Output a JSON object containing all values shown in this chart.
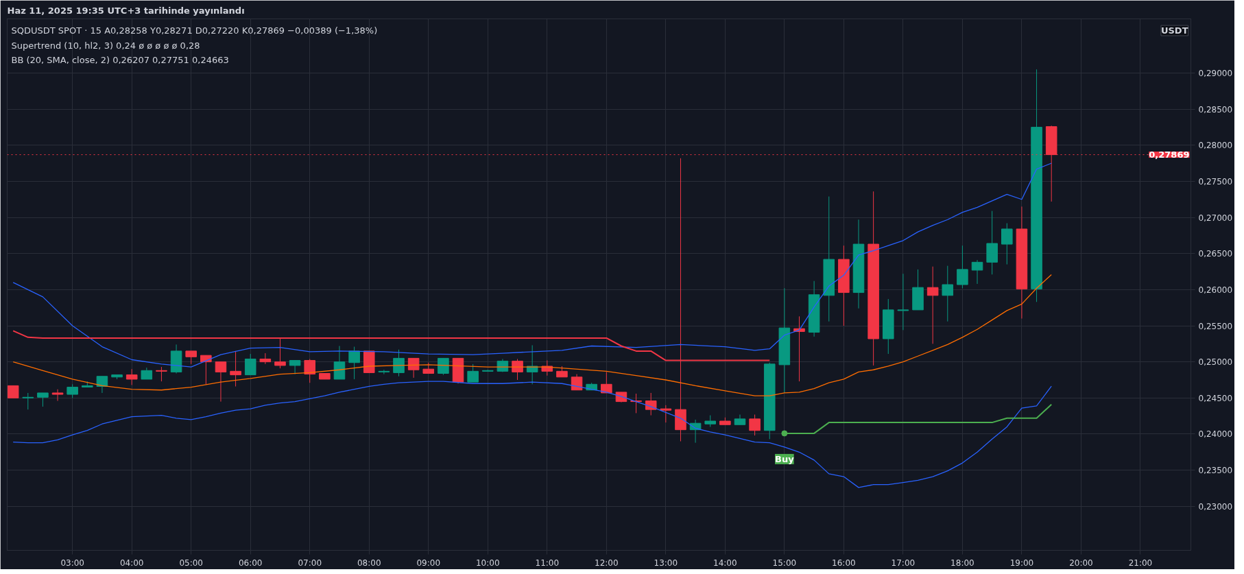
{
  "chart_data": {
    "type": "candlestick",
    "title": "Haz 11, 2025 19:35 UTC+3 tarihinde yayınlandı",
    "annotations": [
      "SQDUSDT SPOT · 15   A0,28258  Y0,28271  D0,27220  K0,27869  −0,00389 (−1,38%)",
      "Supertrend (10, hl2, 3)   0,24  ø  ø  ø  ø  ø  0,28",
      "BB (20, SMA, close, 2)   0,26207  0,27751  0,24663",
      "USDT",
      {
        "text": "Buy",
        "x": 15.0,
        "y": 0.2401
      }
    ],
    "x": [
      2.0,
      2.25,
      2.5,
      2.75,
      3.0,
      3.25,
      3.5,
      3.75,
      4.0,
      4.25,
      4.5,
      4.75,
      5.0,
      5.25,
      5.5,
      5.75,
      6.0,
      6.25,
      6.5,
      6.75,
      7.0,
      7.25,
      7.5,
      7.75,
      8.0,
      8.25,
      8.5,
      8.75,
      9.0,
      9.25,
      9.5,
      9.75,
      10.0,
      10.25,
      10.5,
      10.75,
      11.0,
      11.25,
      11.5,
      11.75,
      12.0,
      12.25,
      12.5,
      12.75,
      13.0,
      13.25,
      13.5,
      13.75,
      14.0,
      14.25,
      14.5,
      14.75,
      15.0,
      15.25,
      15.5,
      15.75,
      16.0,
      16.25,
      16.5,
      16.75,
      17.0,
      17.25,
      17.5,
      17.75,
      18.0,
      18.25,
      18.5,
      18.75,
      19.0,
      19.25,
      19.5
    ],
    "ohlc": [
      [
        0.2467,
        0.2467,
        0.245,
        0.245
      ],
      [
        0.245,
        0.2457,
        0.2434,
        0.2451
      ],
      [
        0.2451,
        0.2457,
        0.2438,
        0.2457
      ],
      [
        0.2457,
        0.2462,
        0.2446,
        0.2455
      ],
      [
        0.2455,
        0.2469,
        0.245,
        0.2465
      ],
      [
        0.2465,
        0.2473,
        0.2465,
        0.2467
      ],
      [
        0.2466,
        0.248,
        0.2457,
        0.248
      ],
      [
        0.2479,
        0.2482,
        0.2476,
        0.2482
      ],
      [
        0.2482,
        0.249,
        0.2468,
        0.2476
      ],
      [
        0.2476,
        0.2492,
        0.2476,
        0.2488
      ],
      [
        0.2488,
        0.2493,
        0.2473,
        0.2487
      ],
      [
        0.2486,
        0.2524,
        0.2484,
        0.2515
      ],
      [
        0.2515,
        0.2515,
        0.2497,
        0.2507
      ],
      [
        0.2509,
        0.2509,
        0.2469,
        0.25
      ],
      [
        0.25,
        0.25,
        0.2445,
        0.2486
      ],
      [
        0.2487,
        0.2515,
        0.2466,
        0.2482
      ],
      [
        0.2482,
        0.2511,
        0.2482,
        0.2504
      ],
      [
        0.2504,
        0.2512,
        0.2497,
        0.25
      ],
      [
        0.25,
        0.2533,
        0.2491,
        0.2495
      ],
      [
        0.2495,
        0.2502,
        0.2483,
        0.2502
      ],
      [
        0.2502,
        0.2504,
        0.2471,
        0.2483
      ],
      [
        0.2484,
        0.2484,
        0.2476,
        0.2476
      ],
      [
        0.2476,
        0.2522,
        0.2476,
        0.25
      ],
      [
        0.2499,
        0.2521,
        0.2476,
        0.2515
      ],
      [
        0.2515,
        0.2515,
        0.2485,
        0.2485
      ],
      [
        0.2486,
        0.2489,
        0.2483,
        0.2487
      ],
      [
        0.2485,
        0.2517,
        0.248,
        0.2505
      ],
      [
        0.2505,
        0.2505,
        0.2478,
        0.2489
      ],
      [
        0.249,
        0.2499,
        0.2484,
        0.2484
      ],
      [
        0.2484,
        0.2505,
        0.2482,
        0.2505
      ],
      [
        0.2505,
        0.2505,
        0.247,
        0.2472
      ],
      [
        0.2472,
        0.2497,
        0.2472,
        0.2487
      ],
      [
        0.2487,
        0.2489,
        0.2487,
        0.2488
      ],
      [
        0.2487,
        0.2504,
        0.2486,
        0.2501
      ],
      [
        0.2501,
        0.2504,
        0.2475,
        0.2486
      ],
      [
        0.2486,
        0.2523,
        0.2469,
        0.2494
      ],
      [
        0.2494,
        0.2502,
        0.2481,
        0.2487
      ],
      [
        0.2487,
        0.2494,
        0.2479,
        0.2479
      ],
      [
        0.2479,
        0.2483,
        0.2461,
        0.2461
      ],
      [
        0.2461,
        0.2471,
        0.2461,
        0.2469
      ],
      [
        0.2469,
        0.2486,
        0.2457,
        0.2457
      ],
      [
        0.2458,
        0.2458,
        0.2444,
        0.2445
      ],
      [
        0.2446,
        0.2456,
        0.2429,
        0.2445
      ],
      [
        0.2446,
        0.2457,
        0.2426,
        0.2434
      ],
      [
        0.2435,
        0.244,
        0.2416,
        0.2433
      ],
      [
        0.2434,
        0.2782,
        0.239,
        0.2406
      ],
      [
        0.2406,
        0.242,
        0.2388,
        0.2415
      ],
      [
        0.2414,
        0.2426,
        0.241,
        0.2418
      ],
      [
        0.2418,
        0.2423,
        0.2413,
        0.2413
      ],
      [
        0.2413,
        0.2427,
        0.2413,
        0.2421
      ],
      [
        0.2421,
        0.2427,
        0.2398,
        0.2405
      ],
      [
        0.2405,
        0.2499,
        0.2393,
        0.2497
      ],
      [
        0.2496,
        0.2602,
        0.2457,
        0.2547
      ],
      [
        0.2546,
        0.2563,
        0.2473,
        0.2542
      ],
      [
        0.2541,
        0.2612,
        0.2535,
        0.2593
      ],
      [
        0.2592,
        0.2729,
        0.2556,
        0.2642
      ],
      [
        0.2642,
        0.2661,
        0.255,
        0.2596
      ],
      [
        0.2596,
        0.2697,
        0.2574,
        0.2663
      ],
      [
        0.2663,
        0.2736,
        0.2495,
        0.2532
      ],
      [
        0.2532,
        0.2587,
        0.2511,
        0.2572
      ],
      [
        0.2571,
        0.2622,
        0.2544,
        0.2572
      ],
      [
        0.2572,
        0.2628,
        0.2572,
        0.2603
      ],
      [
        0.2603,
        0.2632,
        0.2525,
        0.2592
      ],
      [
        0.2592,
        0.2633,
        0.2556,
        0.2607
      ],
      [
        0.2607,
        0.2661,
        0.2602,
        0.2628
      ],
      [
        0.2627,
        0.2641,
        0.2608,
        0.2638
      ],
      [
        0.2638,
        0.2709,
        0.2621,
        0.2664
      ],
      [
        0.2663,
        0.2692,
        0.2635,
        0.2684
      ],
      [
        0.2684,
        0.2715,
        0.256,
        0.2601
      ],
      [
        0.2601,
        0.2905,
        0.2583,
        0.2825
      ],
      [
        0.28258,
        0.28271,
        0.2722,
        0.27869
      ]
    ],
    "series": [
      {
        "type": "line",
        "color": "#2962ff",
        "x": [
          2.0,
          2.5,
          3.0,
          3.5,
          4.0,
          4.5,
          5.0,
          5.5,
          6.0,
          6.5,
          7.0,
          7.5,
          8.25,
          9.0,
          9.75,
          10.25,
          11.25,
          11.75,
          12.5,
          13.25,
          14.0,
          14.5,
          14.75,
          15.0,
          15.25,
          15.5,
          15.75,
          16.0,
          16.25,
          16.5,
          16.75,
          17.0,
          17.25,
          17.5,
          17.75,
          18.0,
          18.25,
          18.5,
          18.75,
          19.0,
          19.25,
          19.5
        ],
        "values": [
          0.261,
          0.259,
          0.255,
          0.2521,
          0.2503,
          0.2497,
          0.2493,
          0.251,
          0.2519,
          0.252,
          0.2514,
          0.2515,
          0.2514,
          0.2511,
          0.251,
          0.2512,
          0.2516,
          0.2522,
          0.252,
          0.2524,
          0.2521,
          0.2516,
          0.2518,
          0.2537,
          0.2544,
          0.2576,
          0.2605,
          0.262,
          0.2648,
          0.2654,
          0.2661,
          0.2668,
          0.268,
          0.2689,
          0.2697,
          0.2707,
          0.2714,
          0.2723,
          0.2732,
          0.2725,
          0.2767,
          0.27751
        ]
      },
      {
        "type": "line",
        "color": "#ff6d00",
        "x": [
          2.0,
          2.5,
          3.0,
          3.5,
          4.0,
          4.5,
          5.0,
          5.5,
          6.0,
          6.5,
          7.0,
          7.5,
          8.0,
          8.5,
          9.0,
          10.0,
          11.0,
          12.0,
          12.5,
          13.0,
          13.5,
          14.0,
          14.5,
          14.75,
          15.0,
          15.25,
          15.5,
          15.75,
          16.0,
          16.25,
          16.5,
          16.75,
          17.0,
          17.25,
          17.5,
          17.75,
          18.0,
          18.25,
          18.5,
          18.75,
          19.0,
          19.25,
          19.5
        ],
        "values": [
          0.25,
          0.2488,
          0.2476,
          0.2467,
          0.2462,
          0.2461,
          0.2465,
          0.2472,
          0.2477,
          0.2483,
          0.2485,
          0.2489,
          0.2494,
          0.2495,
          0.2496,
          0.2493,
          0.2493,
          0.2487,
          0.2481,
          0.2475,
          0.2467,
          0.246,
          0.2453,
          0.2453,
          0.2457,
          0.2458,
          0.2463,
          0.2471,
          0.2476,
          0.2486,
          0.2489,
          0.2494,
          0.25,
          0.2508,
          0.2516,
          0.2524,
          0.2534,
          0.2545,
          0.2558,
          0.2571,
          0.258,
          0.2602,
          0.26207
        ]
      },
      {
        "type": "line",
        "color": "#2962ff",
        "x": [
          2.0,
          2.25,
          2.5,
          2.75,
          3.0,
          3.25,
          3.5,
          3.75,
          4.0,
          4.25,
          4.5,
          4.75,
          5.0,
          5.25,
          5.5,
          5.75,
          6.0,
          6.25,
          6.5,
          6.75,
          7.0,
          7.25,
          7.5,
          7.75,
          8.0,
          8.25,
          8.5,
          8.75,
          9.0,
          9.25,
          9.75,
          10.25,
          10.75,
          11.25,
          11.5,
          11.75,
          12.0,
          12.25,
          12.5,
          12.75,
          13.0,
          13.25,
          13.5,
          13.75,
          14.0,
          14.25,
          14.5,
          14.75,
          15.0,
          15.25,
          15.5,
          15.75,
          16.0,
          16.25,
          16.5,
          16.75,
          17.0,
          17.25,
          17.5,
          17.75,
          18.0,
          18.25,
          18.5,
          18.75,
          19.0,
          19.25,
          19.5
        ],
        "values": [
          0.2389,
          0.2388,
          0.2388,
          0.2392,
          0.2399,
          0.2405,
          0.2414,
          0.2419,
          0.2424,
          0.2425,
          0.2426,
          0.2422,
          0.242,
          0.2424,
          0.2429,
          0.2433,
          0.2435,
          0.244,
          0.2443,
          0.2445,
          0.2449,
          0.2453,
          0.2458,
          0.2462,
          0.2466,
          0.2469,
          0.2471,
          0.2472,
          0.2473,
          0.2473,
          0.247,
          0.247,
          0.2472,
          0.247,
          0.2466,
          0.2462,
          0.2458,
          0.2452,
          0.2445,
          0.2438,
          0.243,
          0.2422,
          0.2408,
          0.2403,
          0.2399,
          0.2394,
          0.2389,
          0.2388,
          0.2382,
          0.2375,
          0.2364,
          0.2345,
          0.2341,
          0.2326,
          0.233,
          0.233,
          0.2333,
          0.2336,
          0.2341,
          0.2349,
          0.236,
          0.2375,
          0.2393,
          0.241,
          0.2436,
          0.2439,
          0.24663
        ]
      },
      {
        "type": "line",
        "color": "#f23645",
        "x": [
          2.0,
          2.25,
          2.5,
          12.0,
          12.25,
          12.5,
          12.75,
          13.0,
          14.75
        ],
        "values": [
          0.2543,
          0.2534,
          0.2533,
          0.2533,
          0.2522,
          0.2515,
          0.2515,
          0.2502,
          0.2502
        ]
      },
      {
        "type": "line",
        "color": "#4caf50",
        "x": [
          15.0,
          15.5,
          15.75,
          18.5,
          18.75,
          19.25,
          19.5
        ],
        "values": [
          0.2401,
          0.2401,
          0.2416,
          0.2416,
          0.2422,
          0.2422,
          0.2441
        ]
      }
    ],
    "ref_lines": [
      {
        "axis": "y",
        "value": 0.27869,
        "label": "0,27869",
        "color": "#f23645",
        "line_style": "dotted"
      }
    ],
    "xlim": [
      1.9,
      21.85
    ],
    "xticks": [
      {
        "value": 3,
        "label": "03:00"
      },
      {
        "value": 4,
        "label": "04:00"
      },
      {
        "value": 5,
        "label": "05:00"
      },
      {
        "value": 6,
        "label": "06:00"
      },
      {
        "value": 7,
        "label": "07:00"
      },
      {
        "value": 8,
        "label": "08:00"
      },
      {
        "value": 9,
        "label": "09:00"
      },
      {
        "value": 10,
        "label": "10:00"
      },
      {
        "value": 11,
        "label": "11:00"
      },
      {
        "value": 12,
        "label": "12:00"
      },
      {
        "value": 13,
        "label": "13:00"
      },
      {
        "value": 14,
        "label": "14:00"
      },
      {
        "value": 15,
        "label": "15:00"
      },
      {
        "value": 16,
        "label": "16:00"
      },
      {
        "value": 17,
        "label": "17:00"
      },
      {
        "value": 18,
        "label": "18:00"
      },
      {
        "value": 19,
        "label": "19:00"
      },
      {
        "value": 20,
        "label": "20:00"
      },
      {
        "value": 21,
        "label": "21:00"
      }
    ],
    "ylim": [
      0.2239,
      0.2975
    ],
    "yticks": [
      {
        "value": 0.23,
        "label": "0,23000"
      },
      {
        "value": 0.235,
        "label": "0,23500"
      },
      {
        "value": 0.24,
        "label": "0,24000"
      },
      {
        "value": 0.245,
        "label": "0,24500"
      },
      {
        "value": 0.25,
        "label": "0,25000"
      },
      {
        "value": 0.255,
        "label": "0,25500"
      },
      {
        "value": 0.26,
        "label": "0,26000"
      },
      {
        "value": 0.265,
        "label": "0,26500"
      },
      {
        "value": 0.27,
        "label": "0,27000"
      },
      {
        "value": 0.275,
        "label": "0,27500"
      },
      {
        "value": 0.28,
        "label": "0,28000"
      },
      {
        "value": 0.285,
        "label": "0,28500"
      },
      {
        "value": 0.29,
        "label": "0,29000"
      }
    ],
    "grid": true
  }
}
